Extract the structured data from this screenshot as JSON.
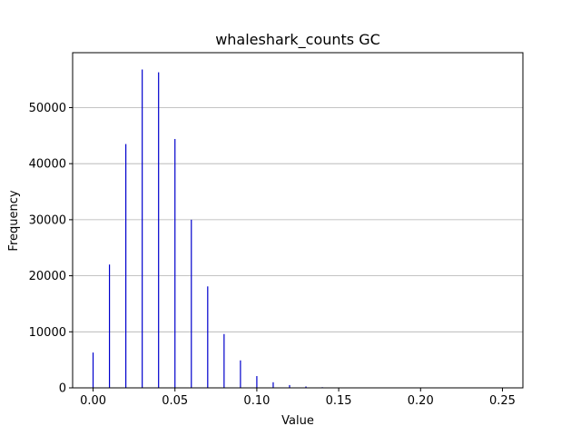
{
  "chart_data": {
    "type": "bar",
    "title": "whaleshark_counts GC",
    "xlabel": "Value",
    "ylabel": "Frequency",
    "xlim": [
      -0.0125,
      0.2625
    ],
    "ylim": [
      0,
      59800
    ],
    "xticks": [
      0.0,
      0.05,
      0.1,
      0.15,
      0.2,
      0.25
    ],
    "xtick_labels": [
      "0.00",
      "0.05",
      "0.10",
      "0.15",
      "0.20",
      "0.25"
    ],
    "yticks": [
      0,
      10000,
      20000,
      30000,
      40000,
      50000
    ],
    "ytick_labels": [
      "0",
      "10000",
      "20000",
      "30000",
      "40000",
      "50000"
    ],
    "grid": "y",
    "bar_color": "#0000cd",
    "series": [
      {
        "x": [
          0.0,
          0.01,
          0.02,
          0.03,
          0.04,
          0.05,
          0.06,
          0.07,
          0.08,
          0.09,
          0.1,
          0.11,
          0.12,
          0.13,
          0.14
        ],
        "values": [
          6300,
          22000,
          43500,
          56800,
          56300,
          44400,
          30000,
          18100,
          9600,
          4900,
          2100,
          1000,
          500,
          250,
          120
        ]
      }
    ]
  }
}
